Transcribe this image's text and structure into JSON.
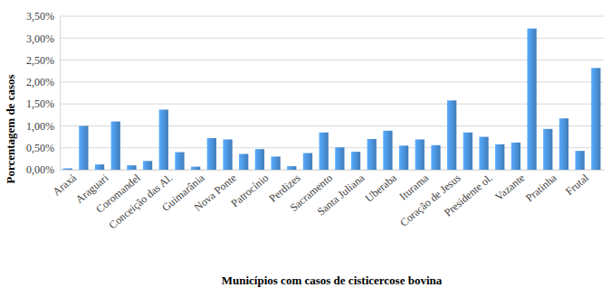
{
  "chart_data": {
    "type": "bar",
    "x_label": "Municípios com casos de cisticercose bovina",
    "y_label": "Porcentagem de casos",
    "categories": [
      "Araxá",
      null,
      "Araguari",
      null,
      "Coromandel",
      null,
      "Conceição das Al.",
      null,
      "Guimarânia",
      null,
      "Nova Ponte",
      null,
      "Patrocínio",
      null,
      "Perdizes",
      null,
      "Sacramento",
      null,
      "Santa Juliana",
      null,
      "Uberaba",
      null,
      "Iturama",
      null,
      "Coração de Jesus",
      null,
      "Presidente ol.",
      null,
      "Vazante",
      null,
      "Pratinha",
      null,
      "Frutal",
      null
    ],
    "values": [
      0.03,
      1.0,
      0.12,
      1.1,
      0.1,
      0.2,
      1.37,
      0.4,
      0.07,
      0.72,
      0.69,
      0.36,
      0.47,
      0.3,
      0.08,
      0.38,
      0.85,
      0.51,
      0.41,
      0.7,
      0.89,
      0.55,
      0.69,
      0.56,
      1.58,
      0.85,
      0.75,
      0.58,
      0.62,
      3.22,
      0.93,
      1.17,
      0.43,
      2.32
    ],
    "color": "#4a8fd6",
    "ylim": [
      0,
      3.5
    ],
    "yticks": [
      {
        "value": 0,
        "label": "0,00%"
      },
      {
        "value": 0.5,
        "label": "0,50%"
      },
      {
        "value": 1,
        "label": "1,00%"
      },
      {
        "value": 1.5,
        "label": "1,50%"
      },
      {
        "value": 2,
        "label": "2,00%"
      },
      {
        "value": 2.5,
        "label": "2,50%"
      },
      {
        "value": 3,
        "label": "3,00%"
      },
      {
        "value": 3.5,
        "label": "3,50%"
      }
    ],
    "grid": true
  }
}
